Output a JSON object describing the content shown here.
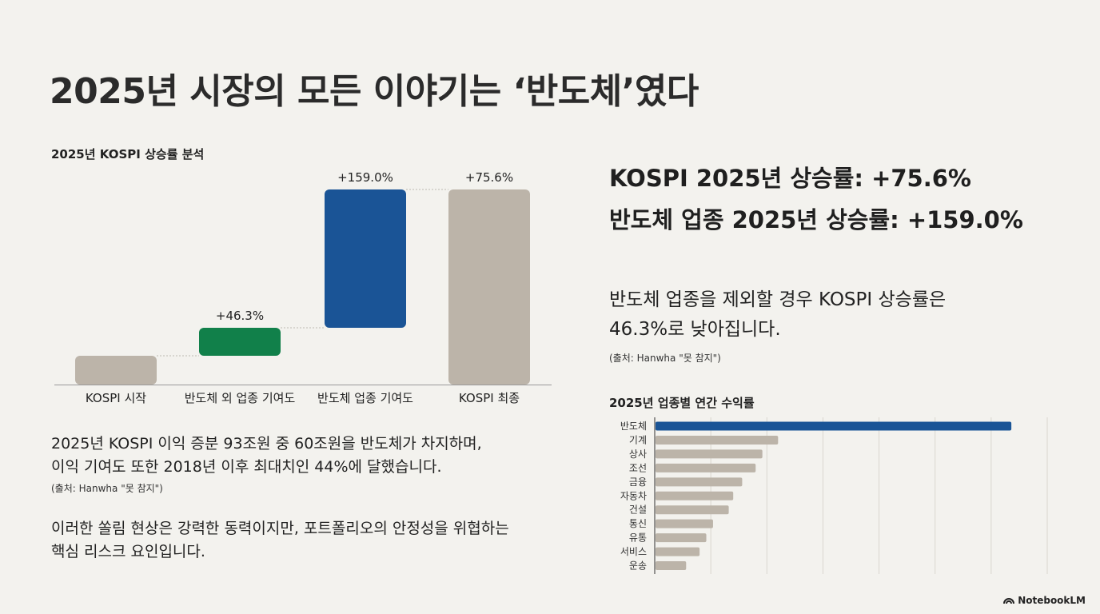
{
  "title": "2025년 시장의 모든 이야기는 ‘반도체’였다",
  "chart_data": [
    {
      "type": "bar",
      "subtype": "waterfall",
      "title": "2025년 KOSPI 상승률 분석",
      "categories": [
        "KOSPI 시작",
        "반도체 외 업종 기여도",
        "반도체 업종 기여도",
        "KOSPI 최종"
      ],
      "values": [
        0,
        46.3,
        159.0,
        75.6
      ],
      "value_labels": [
        "",
        "+46.3%",
        "+159.0%",
        "+75.6%"
      ],
      "colors": [
        "#bcb4a9",
        "#11804a",
        "#1a5496",
        "#bcb4a9"
      ],
      "xlabel": "",
      "ylabel": "",
      "grid": false,
      "legend": "none"
    },
    {
      "type": "bar",
      "orientation": "horizontal",
      "title": "2025년 업종별 연간 수익률",
      "categories": [
        "반도체",
        "기계",
        "상사",
        "조선",
        "금융",
        "자동차",
        "건설",
        "통신",
        "유통",
        "서비스",
        "운송"
      ],
      "values": [
        159.0,
        55.0,
        48.0,
        45.0,
        39.0,
        35.0,
        33.0,
        26.0,
        23.0,
        20.0,
        14.0
      ],
      "colors": [
        "#1a5496",
        "#bcb4a9",
        "#bcb4a9",
        "#bcb4a9",
        "#bcb4a9",
        "#bcb4a9",
        "#bcb4a9",
        "#bcb4a9",
        "#bcb4a9",
        "#bcb4a9",
        "#bcb4a9"
      ],
      "xlim": [
        0,
        175
      ],
      "grid": true,
      "legend": "none"
    }
  ],
  "left_text": {
    "line1": "2025년 KOSPI 이익 증분 93조원 중 60조원을 반도체가 차지하며,",
    "line2": "이익 기여도 또한 2018년 이후 최대치인 44%에 달했습니다.",
    "source": "(출처: Hanwha \"못 참지\")",
    "risk1": "이러한 쏠림 현상은 강력한 동력이지만, 포트폴리오의 안정성을 위협하는",
    "risk2": "핵심 리스크 요인입니다."
  },
  "right_text": {
    "kospi_line": "KOSPI 2025년 상승률: +75.6%",
    "semi_line": "반도체 업종 2025년 상승률: +159.0%",
    "excl1": "반도체 업종을 제외할 경우 KOSPI 상승률은",
    "excl2": "46.3%로 낮아집니다.",
    "source": "(출처: Hanwha \"못 참지\")"
  },
  "branding": "NotebookLM"
}
